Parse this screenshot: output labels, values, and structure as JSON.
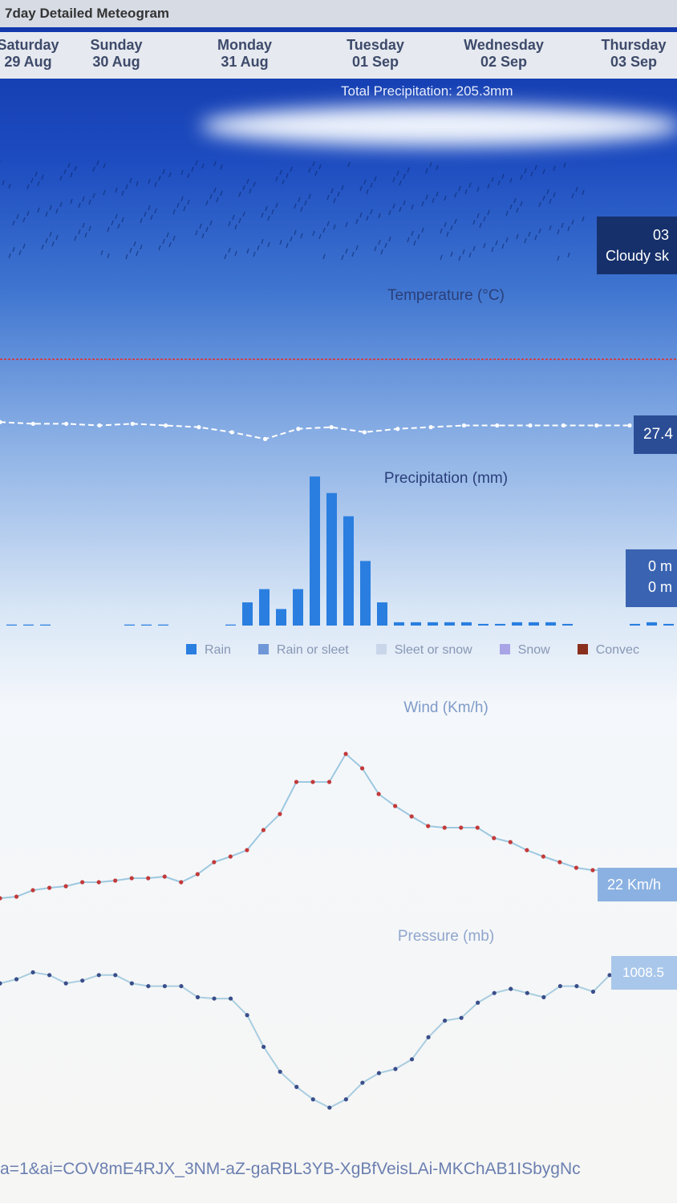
{
  "header": {
    "title": "7day Detailed Meteogram"
  },
  "days": [
    {
      "name": "Saturday",
      "date": "29 Aug"
    },
    {
      "name": "Sunday",
      "date": "30 Aug"
    },
    {
      "name": "Monday",
      "date": "31 Aug"
    },
    {
      "name": "Tuesday",
      "date": "01 Sep"
    },
    {
      "name": "Wednesday",
      "date": "02 Sep"
    },
    {
      "name": "Thursday",
      "date": "03 Sep"
    }
  ],
  "total_precipitation": "Total Precipitation: 205.3mm",
  "cloud_box": {
    "time": "03",
    "text": "Cloudy sk"
  },
  "temperature_label": "27.4",
  "precip_box": [
    "0 m",
    "0 m"
  ],
  "wind_label": "22 Km/h",
  "pressure_label": "1008.5",
  "url": "a=1&ai=COV8mE4RJX_3NM-aZ-gaRBL3YB-XgBfVeisLAi-MKChAB1ISbygNc",
  "chart_data": [
    {
      "type": "line",
      "title": "Temperature (°C)",
      "color": "#ffffff",
      "ylim": [
        26,
        33.6
      ],
      "values": [
        27.6,
        27.5,
        27.5,
        27.4,
        27.5,
        27.4,
        27.3,
        27.0,
        26.6,
        27.2,
        27.3,
        27.0,
        27.2,
        27.3,
        27.4,
        27.4,
        27.4,
        27.4,
        27.4,
        27.4
      ]
    },
    {
      "type": "bar",
      "title": "Precipitation (mm)",
      "color": "#2a7ee0",
      "ylim": [
        0,
        46
      ],
      "values": [
        0.3,
        0.3,
        0.3,
        0,
        0,
        0,
        0,
        0.3,
        0.3,
        0.3,
        0,
        0,
        0,
        0.3,
        7,
        11,
        5,
        11,
        45,
        40,
        33,
        19.5,
        7,
        1,
        1,
        1,
        1,
        1,
        0.5,
        0.5,
        1,
        1,
        1,
        0.5,
        0,
        0,
        0,
        0.5,
        1,
        0.5
      ],
      "legend": [
        {
          "name": "Rain",
          "color": "#2a7ee0"
        },
        {
          "name": "Rain or sleet",
          "color": "#6f97d8"
        },
        {
          "name": "Sleet or snow",
          "color": "#c9d6ea"
        },
        {
          "name": "Snow",
          "color": "#a9a4e6"
        },
        {
          "name": "Convec",
          "color": "#8a2f1e"
        }
      ]
    },
    {
      "type": "line",
      "title": "Wind (Km/h)",
      "color": "#9cc8e0",
      "marker_color": "#c23a3a",
      "ylim": [
        8.5,
        77.5
      ],
      "values": [
        11.5,
        12.1,
        14.5,
        15.4,
        16,
        17.5,
        17.5,
        18.1,
        19,
        19,
        19.6,
        17.5,
        20.5,
        25,
        27.1,
        29.5,
        37,
        43,
        55,
        55,
        55,
        65.5,
        60.1,
        50.5,
        46,
        42.1,
        38.5,
        37.9,
        37.9,
        37.9,
        34,
        32.5,
        29.5,
        27.1,
        25,
        22.9,
        22,
        22,
        22
      ]
    },
    {
      "type": "line",
      "title": "Pressure (mb)",
      "color": "#a8cde0",
      "marker_color": "#3a4e8a",
      "ylim": [
        997.8,
        1010
      ],
      "values": [
        1007.9,
        1008.2,
        1008.7,
        1008.5,
        1007.9,
        1008.1,
        1008.5,
        1008.5,
        1007.9,
        1007.7,
        1007.7,
        1007.7,
        1006.9,
        1006.8,
        1006.8,
        1005.6,
        1003.3,
        1001.5,
        1000.4,
        999.5,
        998.9,
        999.5,
        1000.7,
        1001.4,
        1001.7,
        1002.4,
        1004,
        1005.2,
        1005.4,
        1006.5,
        1007.2,
        1007.5,
        1007.2,
        1006.9,
        1007.7,
        1007.7,
        1007.3,
        1008.5
      ]
    }
  ]
}
